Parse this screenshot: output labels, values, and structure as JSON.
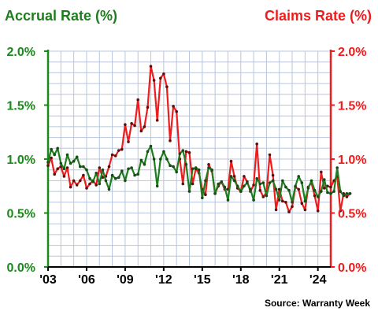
{
  "chart_data": {
    "type": "line",
    "left_axis_title": "Accrual Rate (%)",
    "right_axis_title": "Claims Rate (%)",
    "source": "Source: Warranty Week",
    "ylim": [
      0,
      2.0
    ],
    "xlim": [
      2003.0,
      2025.0
    ],
    "yticks": [
      "0.0%",
      "0.5%",
      "1.0%",
      "1.5%",
      "2.0%"
    ],
    "ytick_values": [
      0,
      0.5,
      1.0,
      1.5,
      2.0
    ],
    "xticks": [
      "'03",
      "'06",
      "'09",
      "'12",
      "'15",
      "'18",
      "'21",
      "'24"
    ],
    "xtick_values": [
      2003,
      2006,
      2009,
      2012,
      2015,
      2018,
      2021,
      2024
    ],
    "grid": true,
    "colors": {
      "accrual": "#1e7d1e",
      "claims": "#ee1c1c",
      "grid": "#b8c6dc",
      "left_axis": "#1a8a1a",
      "right_axis": "#ee1c1c"
    },
    "series": [
      {
        "name": "Accrual Rate (%)",
        "axis": "left",
        "start": 2003.0,
        "step": 0.25,
        "values": [
          0.97,
          1.09,
          1.04,
          1.1,
          0.96,
          0.91,
          1.04,
          0.96,
          0.98,
          1.02,
          0.93,
          0.93,
          0.9,
          0.82,
          0.79,
          0.87,
          0.77,
          0.9,
          0.8,
          0.72,
          0.85,
          0.82,
          0.83,
          0.89,
          0.8,
          0.91,
          0.92,
          0.85,
          0.86,
          0.99,
          0.95,
          1.07,
          1.12,
          1.0,
          0.75,
          1.0,
          1.07,
          1.0,
          0.94,
          0.93,
          0.88,
          1.05,
          1.08,
          0.95,
          0.7,
          0.91,
          0.92,
          0.9,
          0.64,
          0.8,
          0.92,
          0.9,
          0.68,
          0.77,
          0.79,
          0.74,
          0.62,
          0.84,
          0.8,
          0.75,
          0.7,
          0.75,
          0.78,
          0.72,
          0.62,
          0.82,
          0.77,
          0.78,
          0.66,
          0.78,
          0.8,
          0.72,
          0.62,
          0.8,
          0.74,
          0.71,
          0.6,
          0.75,
          0.84,
          0.78,
          0.61,
          0.73,
          0.8,
          0.71,
          0.65,
          0.7,
          0.81,
          0.69,
          0.68,
          0.7,
          0.92,
          0.7,
          0.66,
          0.68,
          0.68
        ]
      },
      {
        "name": "Claims Rate (%)",
        "axis": "right",
        "start": 2003.0,
        "step": 0.25,
        "values": [
          0.94,
          1.01,
          0.86,
          0.91,
          0.93,
          0.84,
          0.92,
          0.74,
          0.8,
          0.76,
          0.8,
          0.85,
          0.73,
          0.77,
          0.8,
          0.76,
          0.92,
          0.83,
          0.84,
          0.93,
          1.04,
          1.03,
          1.08,
          1.09,
          1.32,
          1.16,
          1.33,
          1.31,
          1.55,
          1.26,
          1.3,
          1.48,
          1.86,
          1.73,
          1.36,
          1.75,
          1.79,
          1.67,
          1.17,
          1.49,
          1.44,
          1.0,
          0.77,
          1.07,
          1.06,
          0.77,
          0.91,
          0.87,
          0.72,
          0.67,
          0.95,
          0.89,
          0.68,
          0.75,
          0.79,
          0.72,
          0.72,
          0.98,
          0.84,
          0.73,
          0.7,
          0.84,
          0.79,
          0.7,
          0.76,
          1.14,
          0.71,
          0.65,
          0.69,
          1.04,
          0.85,
          0.53,
          0.72,
          0.61,
          0.6,
          0.51,
          0.56,
          0.74,
          0.72,
          0.59,
          0.53,
          0.74,
          0.78,
          0.66,
          0.52,
          0.88,
          0.73,
          0.75,
          0.74,
          0.8,
          0.84,
          0.52,
          0.68,
          0.65,
          0.68
        ]
      }
    ]
  }
}
